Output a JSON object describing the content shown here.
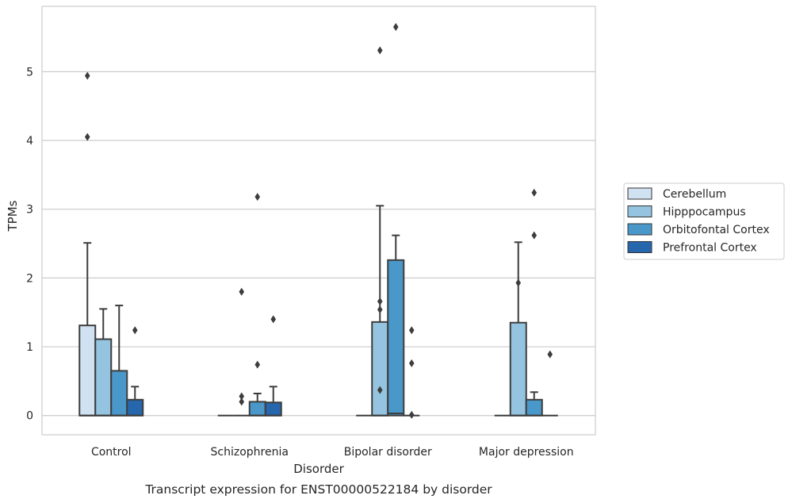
{
  "chart_data": {
    "type": "box",
    "title": "Transcript expression for ENST00000522184 by disorder",
    "xlabel": "Disorder",
    "ylabel": "TPMs",
    "categories": [
      "Control",
      "Schizophrenia",
      "Bipolar disorder",
      "Major depression"
    ],
    "ylim": [
      -0.28,
      5.95
    ],
    "yticks": [
      0,
      1,
      2,
      3,
      4,
      5
    ],
    "grid": true,
    "legend_position": "right",
    "series": [
      {
        "name": "Cerebellum",
        "color": "#d0e1f2",
        "boxes": [
          {
            "min": 0,
            "q1": 0,
            "median": 0,
            "q3": 1.31,
            "max": 2.51,
            "outliers": [
              4.05,
              4.94
            ]
          },
          {
            "min": 0,
            "q1": 0,
            "median": 0,
            "q3": 0,
            "max": 0,
            "outliers": []
          },
          {
            "min": 0,
            "q1": 0,
            "median": 0,
            "q3": 0,
            "max": 0,
            "outliers": []
          },
          {
            "min": 0,
            "q1": 0,
            "median": 0,
            "q3": 0,
            "max": 0,
            "outliers": []
          }
        ]
      },
      {
        "name": "Hipppocampus",
        "color": "#94c4df",
        "boxes": [
          {
            "min": 0,
            "q1": 0,
            "median": 0,
            "q3": 1.11,
            "max": 1.55,
            "outliers": []
          },
          {
            "min": 0,
            "q1": 0,
            "median": 0,
            "q3": 0,
            "max": 0,
            "outliers": [
              0.2,
              0.28,
              1.8
            ]
          },
          {
            "min": 0,
            "q1": 0,
            "median": 0,
            "q3": 1.36,
            "max": 3.05,
            "outliers": [
              0.37,
              1.54,
              1.66,
              5.31
            ]
          },
          {
            "min": 0,
            "q1": 0,
            "median": 0,
            "q3": 1.35,
            "max": 2.52,
            "outliers": [
              1.93
            ]
          }
        ]
      },
      {
        "name": "Orbitofontal Cortex",
        "color": "#4a98c9",
        "boxes": [
          {
            "min": 0,
            "q1": 0,
            "median": 0,
            "q3": 0.65,
            "max": 1.6,
            "outliers": []
          },
          {
            "min": 0,
            "q1": 0,
            "median": 0,
            "q3": 0.2,
            "max": 0.32,
            "outliers": [
              0.74,
              3.18
            ]
          },
          {
            "min": 0,
            "q1": 0,
            "median": 0.03,
            "q3": 2.26,
            "max": 2.62,
            "outliers": [
              5.65
            ]
          },
          {
            "min": 0,
            "q1": 0,
            "median": 0,
            "q3": 0.23,
            "max": 0.34,
            "outliers": [
              2.62,
              3.24
            ]
          }
        ]
      },
      {
        "name": "Prefrontal Cortex",
        "color": "#2666ac",
        "boxes": [
          {
            "min": 0,
            "q1": 0,
            "median": 0,
            "q3": 0.23,
            "max": 0.42,
            "outliers": [
              1.24
            ]
          },
          {
            "min": 0,
            "q1": 0,
            "median": 0,
            "q3": 0.19,
            "max": 0.42,
            "outliers": [
              1.4
            ]
          },
          {
            "min": 0,
            "q1": 0,
            "median": 0,
            "q3": 0,
            "max": 0,
            "outliers": [
              0.01,
              0.76,
              1.24
            ]
          },
          {
            "min": 0,
            "q1": 0,
            "median": 0,
            "q3": 0,
            "max": 0,
            "outliers": [
              0.89
            ]
          }
        ]
      }
    ]
  }
}
